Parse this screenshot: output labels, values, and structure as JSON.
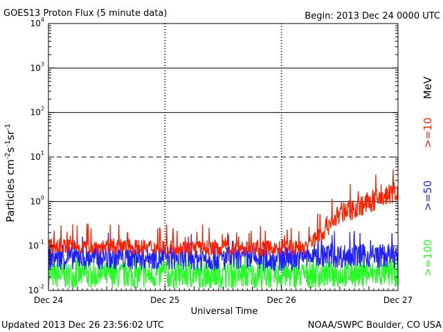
{
  "header": {
    "title": "GOES13 Proton Flux (5 minute data)",
    "begin": "Begin: 2013 Dec 24 0000 UTC"
  },
  "footer": {
    "updated": "Updated 2013 Dec 26 23:56:02 UTC",
    "credit": "NOAA/SWPC Boulder, CO USA"
  },
  "chart_data": {
    "type": "line",
    "title": "GOES13 Proton Flux (5 minute data)",
    "xlabel": "Universal Time",
    "ylabel": "Particles cm-2s-1sr-1",
    "yscale": "log",
    "ylim": [
      0.01,
      10000
    ],
    "xlim": [
      "2013-12-24 00:00",
      "2013-12-27 00:00"
    ],
    "x_ticks": [
      "Dec 24",
      "Dec 25",
      "Dec 26",
      "Dec 27"
    ],
    "y_ticks": [
      {
        "base": "10",
        "exp": "-2"
      },
      {
        "base": "10",
        "exp": "-1"
      },
      {
        "base": "10",
        "exp": "0"
      },
      {
        "base": "10",
        "exp": "1"
      },
      {
        "base": "10",
        "exp": "2"
      },
      {
        "base": "10",
        "exp": "3"
      },
      {
        "base": "10",
        "exp": "4"
      }
    ],
    "threshold_lines": [
      {
        "value": 10,
        "style": "dashed"
      },
      {
        "value": 1,
        "style": "solid"
      },
      {
        "value": 100,
        "style": "solid"
      },
      {
        "value": 1000,
        "style": "solid"
      }
    ],
    "unit_label": "MeV",
    "series": [
      {
        "name": ">=10",
        "color": "#ff2000",
        "profile": [
          [
            0,
            0.095
          ],
          [
            1,
            0.09
          ],
          [
            2,
            0.085
          ],
          [
            2.2,
            0.09
          ],
          [
            2.35,
            0.2
          ],
          [
            2.5,
            0.5
          ],
          [
            2.7,
            0.8
          ],
          [
            2.85,
            1.1
          ],
          [
            3,
            1.7
          ]
        ],
        "noise_range": [
          0.05,
          0.3
        ]
      },
      {
        "name": ">=50",
        "color": "#2020ff",
        "profile": [
          [
            0,
            0.055
          ],
          [
            1,
            0.055
          ],
          [
            2,
            0.05
          ],
          [
            2.3,
            0.06
          ],
          [
            3,
            0.06
          ]
        ],
        "noise_range": [
          0.03,
          0.13
        ]
      },
      {
        "name": ">=100",
        "color": "#20ff20",
        "profile": [
          [
            0,
            0.022
          ],
          [
            1,
            0.022
          ],
          [
            2,
            0.022
          ],
          [
            3,
            0.024
          ]
        ],
        "noise_range": [
          0.012,
          0.06
        ]
      }
    ]
  }
}
